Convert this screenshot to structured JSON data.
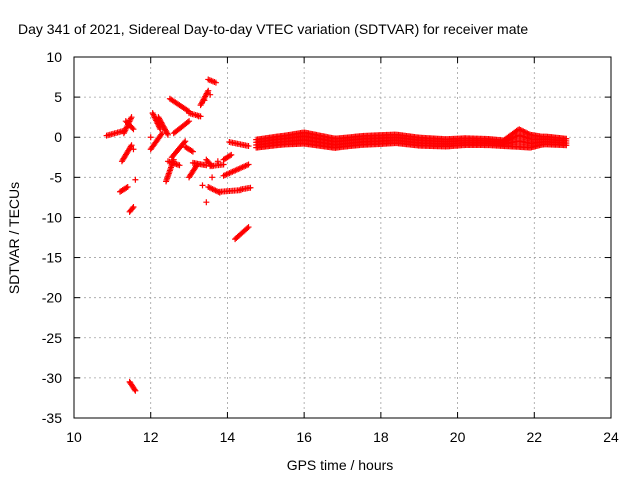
{
  "chart_data": {
    "type": "scatter",
    "title": "Day 341 of 2021, Sidereal Day-to-day VTEC variation (SDTVAR) for receiver mate",
    "xlabel": "GPS time / hours",
    "ylabel": "SDTVAR / TECUs",
    "xlim": [
      10,
      24
    ],
    "ylim": [
      -35,
      10
    ],
    "xticks": [
      10,
      12,
      14,
      16,
      18,
      20,
      22,
      24
    ],
    "yticks": [
      -35,
      -30,
      -25,
      -20,
      -15,
      -10,
      -5,
      0,
      5,
      10
    ],
    "grid": true,
    "marker": "plus",
    "color": "#ff0000",
    "segments": [
      {
        "x0": 10.85,
        "y0": 0.2,
        "x1": 11.3,
        "y1": 0.8
      },
      {
        "x0": 11.2,
        "y0": -6.8,
        "x1": 11.4,
        "y1": -6.2
      },
      {
        "x0": 11.25,
        "y0": -3.0,
        "x1": 11.5,
        "y1": -1.0
      },
      {
        "x0": 11.3,
        "y0": 0.5,
        "x1": 11.5,
        "y1": 2.5
      },
      {
        "x0": 11.35,
        "y0": 2.0,
        "x1": 11.55,
        "y1": 1.0
      },
      {
        "x0": 11.45,
        "y0": -9.3,
        "x1": 11.55,
        "y1": -8.7
      },
      {
        "x0": 11.45,
        "y0": -30.5,
        "x1": 11.6,
        "y1": -31.6
      },
      {
        "x0": 12.0,
        "y0": -1.5,
        "x1": 12.3,
        "y1": 0.5
      },
      {
        "x0": 12.05,
        "y0": 3.0,
        "x1": 12.25,
        "y1": 1.0
      },
      {
        "x0": 12.2,
        "y0": 2.5,
        "x1": 12.45,
        "y1": 0.3
      },
      {
        "x0": 12.4,
        "y0": -5.5,
        "x1": 12.6,
        "y1": -2.8
      },
      {
        "x0": 12.45,
        "y0": -3.0,
        "x1": 12.75,
        "y1": -3.5
      },
      {
        "x0": 12.55,
        "y0": -2.5,
        "x1": 12.9,
        "y1": -0.5
      },
      {
        "x0": 12.6,
        "y0": 0.5,
        "x1": 13.0,
        "y1": 2.0
      },
      {
        "x0": 12.5,
        "y0": 4.8,
        "x1": 13.0,
        "y1": 3.2
      },
      {
        "x0": 12.9,
        "y0": -1.2,
        "x1": 13.1,
        "y1": -1.8
      },
      {
        "x0": 13.0,
        "y0": 3.0,
        "x1": 13.3,
        "y1": 2.6
      },
      {
        "x0": 13.0,
        "y0": -5.0,
        "x1": 13.2,
        "y1": -3.5
      },
      {
        "x0": 13.1,
        "y0": -3.2,
        "x1": 13.45,
        "y1": -3.5
      },
      {
        "x0": 13.3,
        "y0": 4.0,
        "x1": 13.5,
        "y1": 5.8
      },
      {
        "x0": 13.5,
        "y0": 7.2,
        "x1": 13.7,
        "y1": 6.8
      },
      {
        "x0": 13.45,
        "y0": -2.8,
        "x1": 13.6,
        "y1": -3.6
      },
      {
        "x0": 13.55,
        "y0": -3.6,
        "x1": 13.9,
        "y1": -3.4
      },
      {
        "x0": 13.5,
        "y0": -6.2,
        "x1": 13.8,
        "y1": -6.9
      },
      {
        "x0": 13.8,
        "y0": -6.8,
        "x1": 14.35,
        "y1": -6.6
      },
      {
        "x0": 13.9,
        "y0": -2.8,
        "x1": 14.1,
        "y1": -2.2
      },
      {
        "x0": 14.05,
        "y0": -0.6,
        "x1": 14.55,
        "y1": -1.1
      },
      {
        "x0": 13.9,
        "y0": -4.8,
        "x1": 14.55,
        "y1": -3.4
      },
      {
        "x0": 14.2,
        "y0": -12.7,
        "x1": 14.55,
        "y1": -11.2
      },
      {
        "x0": 14.35,
        "y0": -6.5,
        "x1": 14.6,
        "y1": -6.3
      }
    ],
    "scattered_points": [
      [
        11.6,
        -5.3
      ],
      [
        11.55,
        -1.5
      ],
      [
        13.35,
        -6.0
      ],
      [
        13.45,
        -8.1
      ],
      [
        13.4,
        4.6
      ],
      [
        13.25,
        2.6
      ],
      [
        13.6,
        -5.0
      ],
      [
        13.75,
        -3.0
      ],
      [
        12.0,
        0.0
      ],
      [
        13.55,
        5.3
      ]
    ],
    "band": {
      "x_start": 14.75,
      "x_end": 22.85,
      "step": 0.035,
      "center_knots": [
        [
          14.75,
          -0.8
        ],
        [
          15.3,
          -0.45
        ],
        [
          16.0,
          -0.1
        ],
        [
          16.8,
          -0.75
        ],
        [
          17.5,
          -0.4
        ],
        [
          18.4,
          -0.2
        ],
        [
          19.0,
          -0.55
        ],
        [
          19.7,
          -0.7
        ],
        [
          20.2,
          -0.55
        ],
        [
          20.8,
          -0.6
        ],
        [
          21.2,
          -0.75
        ],
        [
          21.6,
          -0.1
        ],
        [
          21.9,
          -0.5
        ],
        [
          22.3,
          -0.4
        ],
        [
          22.85,
          -0.6
        ]
      ],
      "halfwidth_knots": [
        [
          14.75,
          0.5
        ],
        [
          15.5,
          0.55
        ],
        [
          16.0,
          0.7
        ],
        [
          17.0,
          0.55
        ],
        [
          18.0,
          0.55
        ],
        [
          19.0,
          0.5
        ],
        [
          20.5,
          0.4
        ],
        [
          21.2,
          0.35
        ],
        [
          21.6,
          1.1
        ],
        [
          21.9,
          0.8
        ],
        [
          22.2,
          0.5
        ],
        [
          22.85,
          0.4
        ]
      ]
    }
  }
}
